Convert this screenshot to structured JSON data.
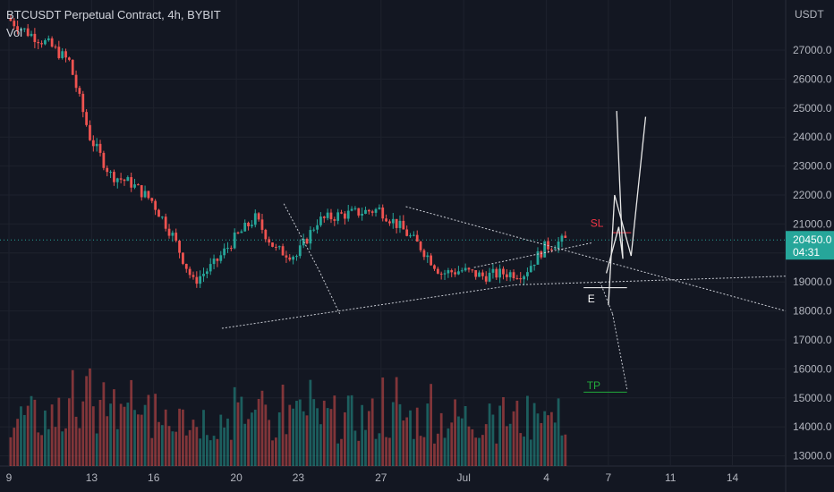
{
  "chart_data": {
    "type": "candlestick",
    "title": "BTCUSDT Perpetual Contract, 4h, BYBIT",
    "volume_label": "Vol",
    "currency": "USDT",
    "y_ticks": [
      "27000.0",
      "26000.0",
      "25000.0",
      "24000.0",
      "23000.0",
      "22000.0",
      "21000.0",
      "20000.0",
      "19000.0",
      "18000.0",
      "17000.0",
      "16000.0",
      "15000.0",
      "14000.0",
      "13000.0"
    ],
    "x_ticks": [
      "9",
      "13",
      "16",
      "20",
      "23",
      "27",
      "Jul",
      "4",
      "7",
      "11",
      "14"
    ],
    "last_price": "20450.0",
    "countdown": "04:31",
    "annotations": {
      "sl": "SL",
      "tp": "TP",
      "entry": "E"
    },
    "series_close_path": [
      {
        "x": "Jun 9",
        "y": 28100
      },
      {
        "x": "Jun 10",
        "y": 27600
      },
      {
        "x": "Jun 11",
        "y": 27200
      },
      {
        "x": "Jun 12",
        "y": 26600
      },
      {
        "x": "Jun 13",
        "y": 24000
      },
      {
        "x": "Jun 14",
        "y": 22700
      },
      {
        "x": "Jun 15",
        "y": 22400
      },
      {
        "x": "Jun 16",
        "y": 21800
      },
      {
        "x": "Jun 17",
        "y": 20600
      },
      {
        "x": "Jun 18",
        "y": 19000
      },
      {
        "x": "Jun 19",
        "y": 19600
      },
      {
        "x": "Jun 20",
        "y": 20500
      },
      {
        "x": "Jun 21",
        "y": 21200
      },
      {
        "x": "Jun 22",
        "y": 20100
      },
      {
        "x": "Jun 23",
        "y": 19900
      },
      {
        "x": "Jun 24",
        "y": 21100
      },
      {
        "x": "Jun 25",
        "y": 21300
      },
      {
        "x": "Jun 26",
        "y": 21400
      },
      {
        "x": "Jun 27",
        "y": 21500
      },
      {
        "x": "Jun 28",
        "y": 20900
      },
      {
        "x": "Jun 29",
        "y": 20200
      },
      {
        "x": "Jun 30",
        "y": 19300
      },
      {
        "x": "Jul 1",
        "y": 19400
      },
      {
        "x": "Jul 2",
        "y": 19200
      },
      {
        "x": "Jul 3",
        "y": 19300
      },
      {
        "x": "Jul 4",
        "y": 19300
      },
      {
        "x": "Jul 5",
        "y": 20200
      },
      {
        "x": "Jul 6",
        "y": 20450
      }
    ]
  },
  "colors": {
    "background": "#131722",
    "up": "#26a69a",
    "down": "#ef5350",
    "sl": "#f23645",
    "tp": "#22ab3c",
    "price_label": "#26a69a"
  }
}
